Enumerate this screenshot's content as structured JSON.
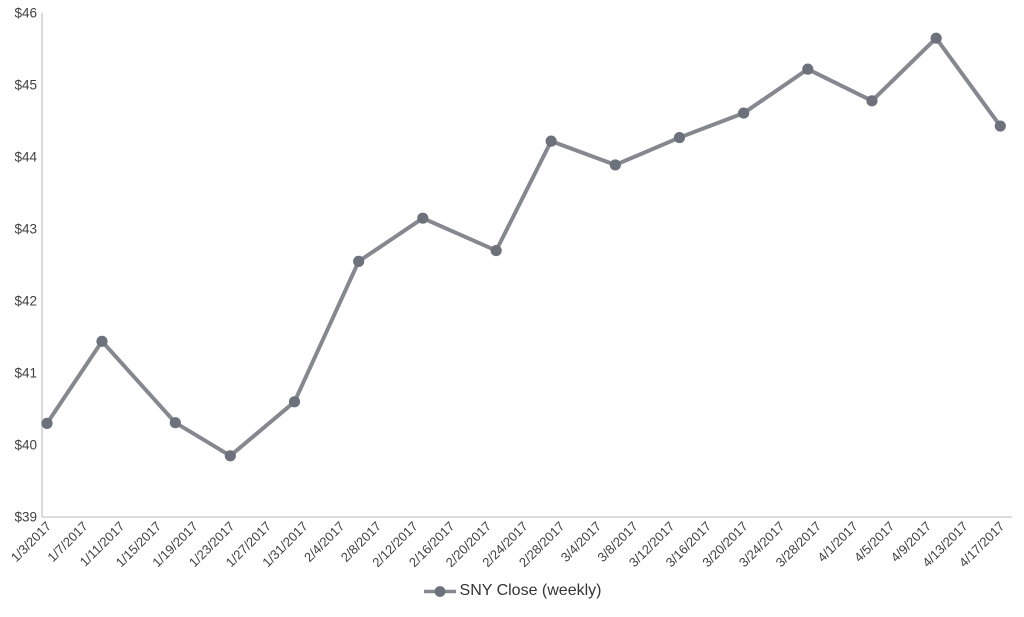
{
  "legend": {
    "label": "SNY Close (weekly)"
  },
  "chart_data": {
    "type": "line",
    "title": "",
    "xlabel": "",
    "ylabel": "",
    "series": [
      {
        "name": "SNY Close (weekly)",
        "x": [
          "1/3/2017",
          "1/9/2017",
          "1/17/2017",
          "1/23/2017",
          "1/30/2017",
          "2/6/2017",
          "2/13/2017",
          "2/21/2017",
          "2/27/2017",
          "3/6/2017",
          "3/13/2017",
          "3/20/2017",
          "3/27/2017",
          "4/3/2017",
          "4/10/2017",
          "4/17/2017"
        ],
        "x_day_offsets": [
          0,
          6,
          14,
          20,
          27,
          34,
          41,
          49,
          55,
          62,
          69,
          76,
          83,
          90,
          97,
          104
        ],
        "values": [
          40.3,
          41.44,
          40.31,
          39.85,
          40.6,
          42.55,
          43.15,
          42.7,
          44.22,
          43.89,
          44.27,
          44.61,
          45.22,
          44.78,
          45.65,
          44.43
        ]
      }
    ],
    "x_axis": {
      "tick_labels": [
        "1/3/2017",
        "1/7/2017",
        "1/11/2017",
        "1/15/2017",
        "1/19/2017",
        "1/23/2017",
        "1/27/2017",
        "1/31/2017",
        "2/4/2017",
        "2/8/2017",
        "2/12/2017",
        "2/16/2017",
        "2/20/2017",
        "2/24/2017",
        "2/28/2017",
        "3/4/2017",
        "3/8/2017",
        "3/12/2017",
        "3/16/2017",
        "3/20/2017",
        "3/24/2017",
        "3/28/2017",
        "4/1/2017",
        "4/5/2017",
        "4/9/2017",
        "4/13/2017",
        "4/17/2017"
      ],
      "tick_interval_days": 4,
      "label_rotation_deg": -45
    },
    "y_axis": {
      "tick_labels": [
        "$46",
        "$45",
        "$44",
        "$43",
        "$42",
        "$41",
        "$40",
        "$39"
      ],
      "min": 39,
      "max": 46,
      "tick_step": 1,
      "prefix": "$"
    },
    "ylim": [
      39,
      46
    ],
    "grid": false,
    "legend_position": "bottom",
    "marker_style": "circle",
    "colors": {
      "line": "#85888f",
      "marker": "#6c717b",
      "axis": "#c7c7c7",
      "tick_text": "#404040",
      "legend_text": "#333333",
      "background": "#ffffff"
    }
  }
}
